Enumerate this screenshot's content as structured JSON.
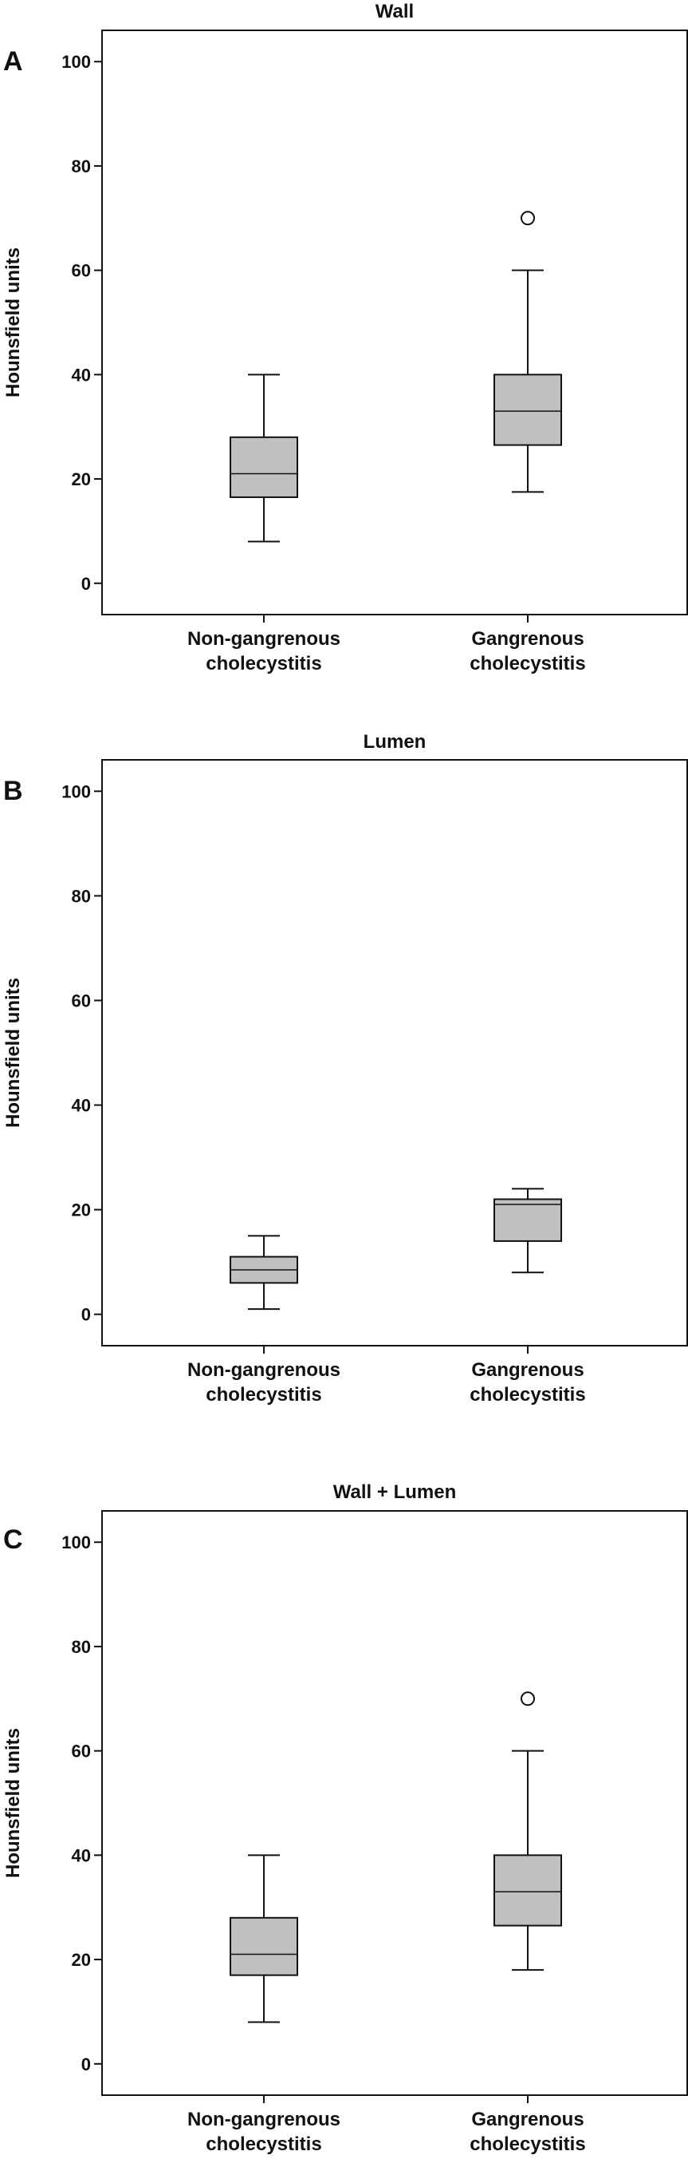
{
  "chart_data": [
    {
      "type": "box",
      "panel_label": "A",
      "title": "Wall",
      "xlabel": "",
      "ylabel": "Hounsfield units",
      "ylim": [
        -6,
        106
      ],
      "yticks": [
        0,
        20,
        40,
        60,
        80,
        100
      ],
      "grid": false,
      "categories": [
        "Non-gangrenous cholecystitis",
        "Gangrenous cholecystitis"
      ],
      "category_lines": [
        [
          "Non-gangrenous",
          "cholecystitis"
        ],
        [
          "Gangrenous",
          "cholecystitis"
        ]
      ],
      "boxes": [
        {
          "whisker_low": 8,
          "q1": 16.5,
          "median": 21,
          "q3": 28,
          "whisker_high": 40,
          "outliers": []
        },
        {
          "whisker_low": 17.5,
          "q1": 26.5,
          "median": 33,
          "q3": 40,
          "whisker_high": 60,
          "outliers": [
            70
          ]
        }
      ],
      "box_color": "#c0c0c0"
    },
    {
      "type": "box",
      "panel_label": "B",
      "title": "Lumen",
      "xlabel": "",
      "ylabel": "Hounsfield units",
      "ylim": [
        -6,
        106
      ],
      "yticks": [
        0,
        20,
        40,
        60,
        80,
        100
      ],
      "grid": false,
      "categories": [
        "Non-gangrenous cholecystitis",
        "Gangrenous cholecystitis"
      ],
      "category_lines": [
        [
          "Non-gangrenous",
          "cholecystitis"
        ],
        [
          "Gangrenous",
          "cholecystitis"
        ]
      ],
      "boxes": [
        {
          "whisker_low": 1,
          "q1": 6,
          "median": 8.5,
          "q3": 11,
          "whisker_high": 15,
          "outliers": []
        },
        {
          "whisker_low": 8,
          "q1": 14,
          "median": 21,
          "q3": 22,
          "whisker_high": 24,
          "outliers": []
        }
      ],
      "box_color": "#c0c0c0"
    },
    {
      "type": "box",
      "panel_label": "C",
      "title": "Wall + Lumen",
      "xlabel": "",
      "ylabel": "Hounsfield units",
      "ylim": [
        -6,
        106
      ],
      "yticks": [
        0,
        20,
        40,
        60,
        80,
        100
      ],
      "grid": false,
      "categories": [
        "Non-gangrenous cholecystitis",
        "Gangrenous cholecystitis"
      ],
      "category_lines": [
        [
          "Non-gangrenous",
          "cholecystitis"
        ],
        [
          "Gangrenous",
          "cholecystitis"
        ]
      ],
      "boxes": [
        {
          "whisker_low": 8,
          "q1": 17,
          "median": 21,
          "q3": 28,
          "whisker_high": 40,
          "outliers": []
        },
        {
          "whisker_low": 18,
          "q1": 26.5,
          "median": 33,
          "q3": 40,
          "whisker_high": 60,
          "outliers": [
            70
          ]
        }
      ],
      "box_color": "#c0c0c0"
    }
  ]
}
